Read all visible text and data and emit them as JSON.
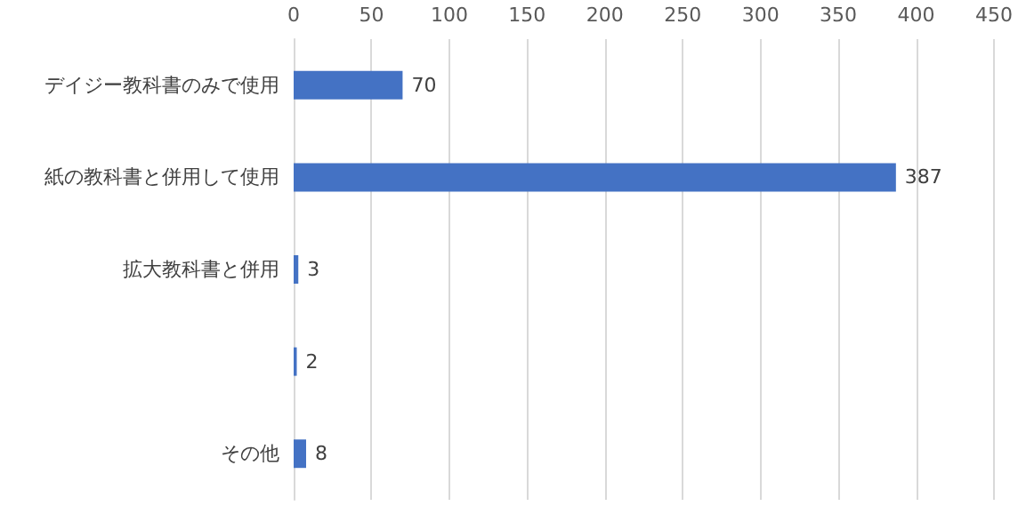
{
  "chart_data": {
    "type": "bar",
    "orientation": "horizontal",
    "categories": [
      "デイジー教科書のみで使用",
      "紙の教科書と併用して使用",
      "拡大教科書と併用",
      null,
      "その他"
    ],
    "values": [
      70,
      387,
      3,
      2,
      8
    ],
    "color": "#4472c4",
    "xlim": [
      0,
      450
    ],
    "xticks": [
      0,
      50,
      100,
      150,
      200,
      250,
      300,
      350,
      400,
      450
    ],
    "grid": "x",
    "data_labels": true
  }
}
